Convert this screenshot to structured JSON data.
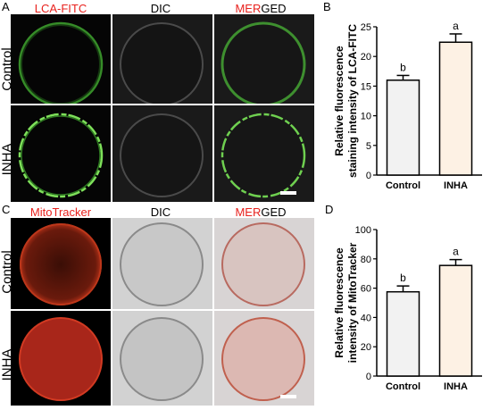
{
  "panels": {
    "A": {
      "letter": "A",
      "columns": [
        {
          "prefix": "",
          "red": "LCA-FITC",
          "suffix": ""
        },
        {
          "prefix": "DIC",
          "red": "",
          "suffix": ""
        },
        {
          "prefix": "",
          "red": "MER",
          "suffix": "GED"
        }
      ],
      "rows": [
        "Control",
        "INHA"
      ]
    },
    "C": {
      "letter": "C",
      "columns": [
        {
          "prefix": "",
          "red": "MitoTracker",
          "suffix": ""
        },
        {
          "prefix": "DIC",
          "red": "",
          "suffix": ""
        },
        {
          "prefix": "",
          "red": "MER",
          "suffix": "GED"
        }
      ],
      "rows": [
        "Control",
        "INHA"
      ]
    },
    "B": {
      "letter": "B"
    },
    "D": {
      "letter": "D"
    }
  },
  "colors": {
    "red_label": "#e8211d",
    "green_signal": "#4cc83a",
    "red_signal": "#c0301c",
    "control_bar": "#f2f2f2",
    "inha_bar": "#fdf1e4"
  },
  "chart_data": [
    {
      "type": "bar",
      "categories": [
        "Control",
        "INHA"
      ],
      "values": [
        16,
        22.4
      ],
      "errors": [
        0.8,
        1.4
      ],
      "significance": [
        "b",
        "a"
      ],
      "ylabel": "Relative fluorescence staining intensity of LCA-FITC",
      "ylim": [
        0,
        25
      ],
      "yticks": [
        "0",
        "5",
        "10",
        "15",
        "20",
        "25"
      ]
    },
    {
      "type": "bar",
      "categories": [
        "Control",
        "INHA"
      ],
      "values": [
        57.5,
        75.5
      ],
      "errors": [
        4,
        4
      ],
      "significance": [
        "b",
        "a"
      ],
      "ylabel": "Relative fluorescence intensity of MitoTracker",
      "ylim": [
        0,
        100
      ],
      "yticks": [
        "0",
        "20",
        "40",
        "60",
        "80",
        "100"
      ]
    }
  ]
}
